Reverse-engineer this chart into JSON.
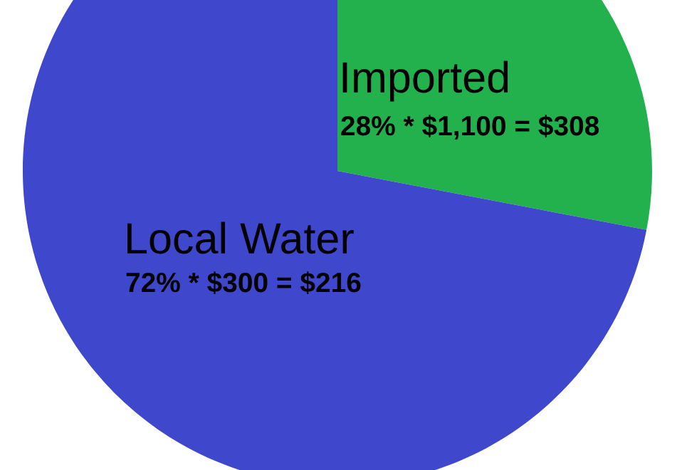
{
  "chart_data": {
    "type": "pie",
    "categories": [
      "Imported",
      "Local Water"
    ],
    "values": [
      28,
      72
    ],
    "colors": [
      "#22b14c",
      "#3f48cc"
    ],
    "value_labels": [
      "28% * $1,100 = $308",
      "72% * $300 = $216"
    ]
  }
}
